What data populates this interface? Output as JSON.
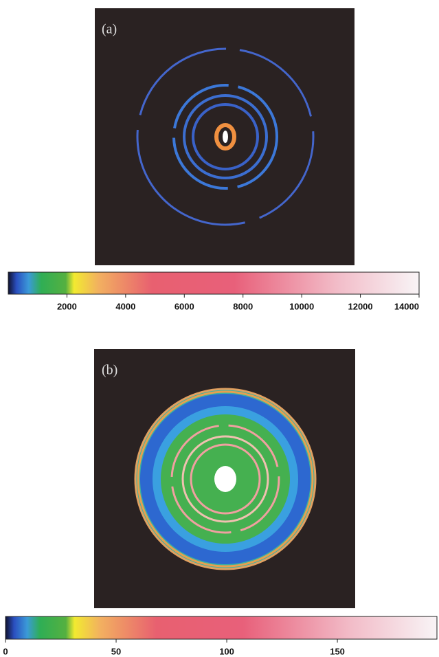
{
  "chart_data": [
    {
      "type": "heatmap",
      "title": "(a)",
      "zlim": [
        0,
        14000
      ],
      "zticks": [
        2000,
        4000,
        6000,
        8000,
        10000,
        12000,
        14000
      ]
    },
    {
      "type": "heatmap",
      "title": "(b)",
      "zlim": [
        0,
        195
      ],
      "zticks": [
        0,
        50,
        100,
        150
      ]
    }
  ]
}
